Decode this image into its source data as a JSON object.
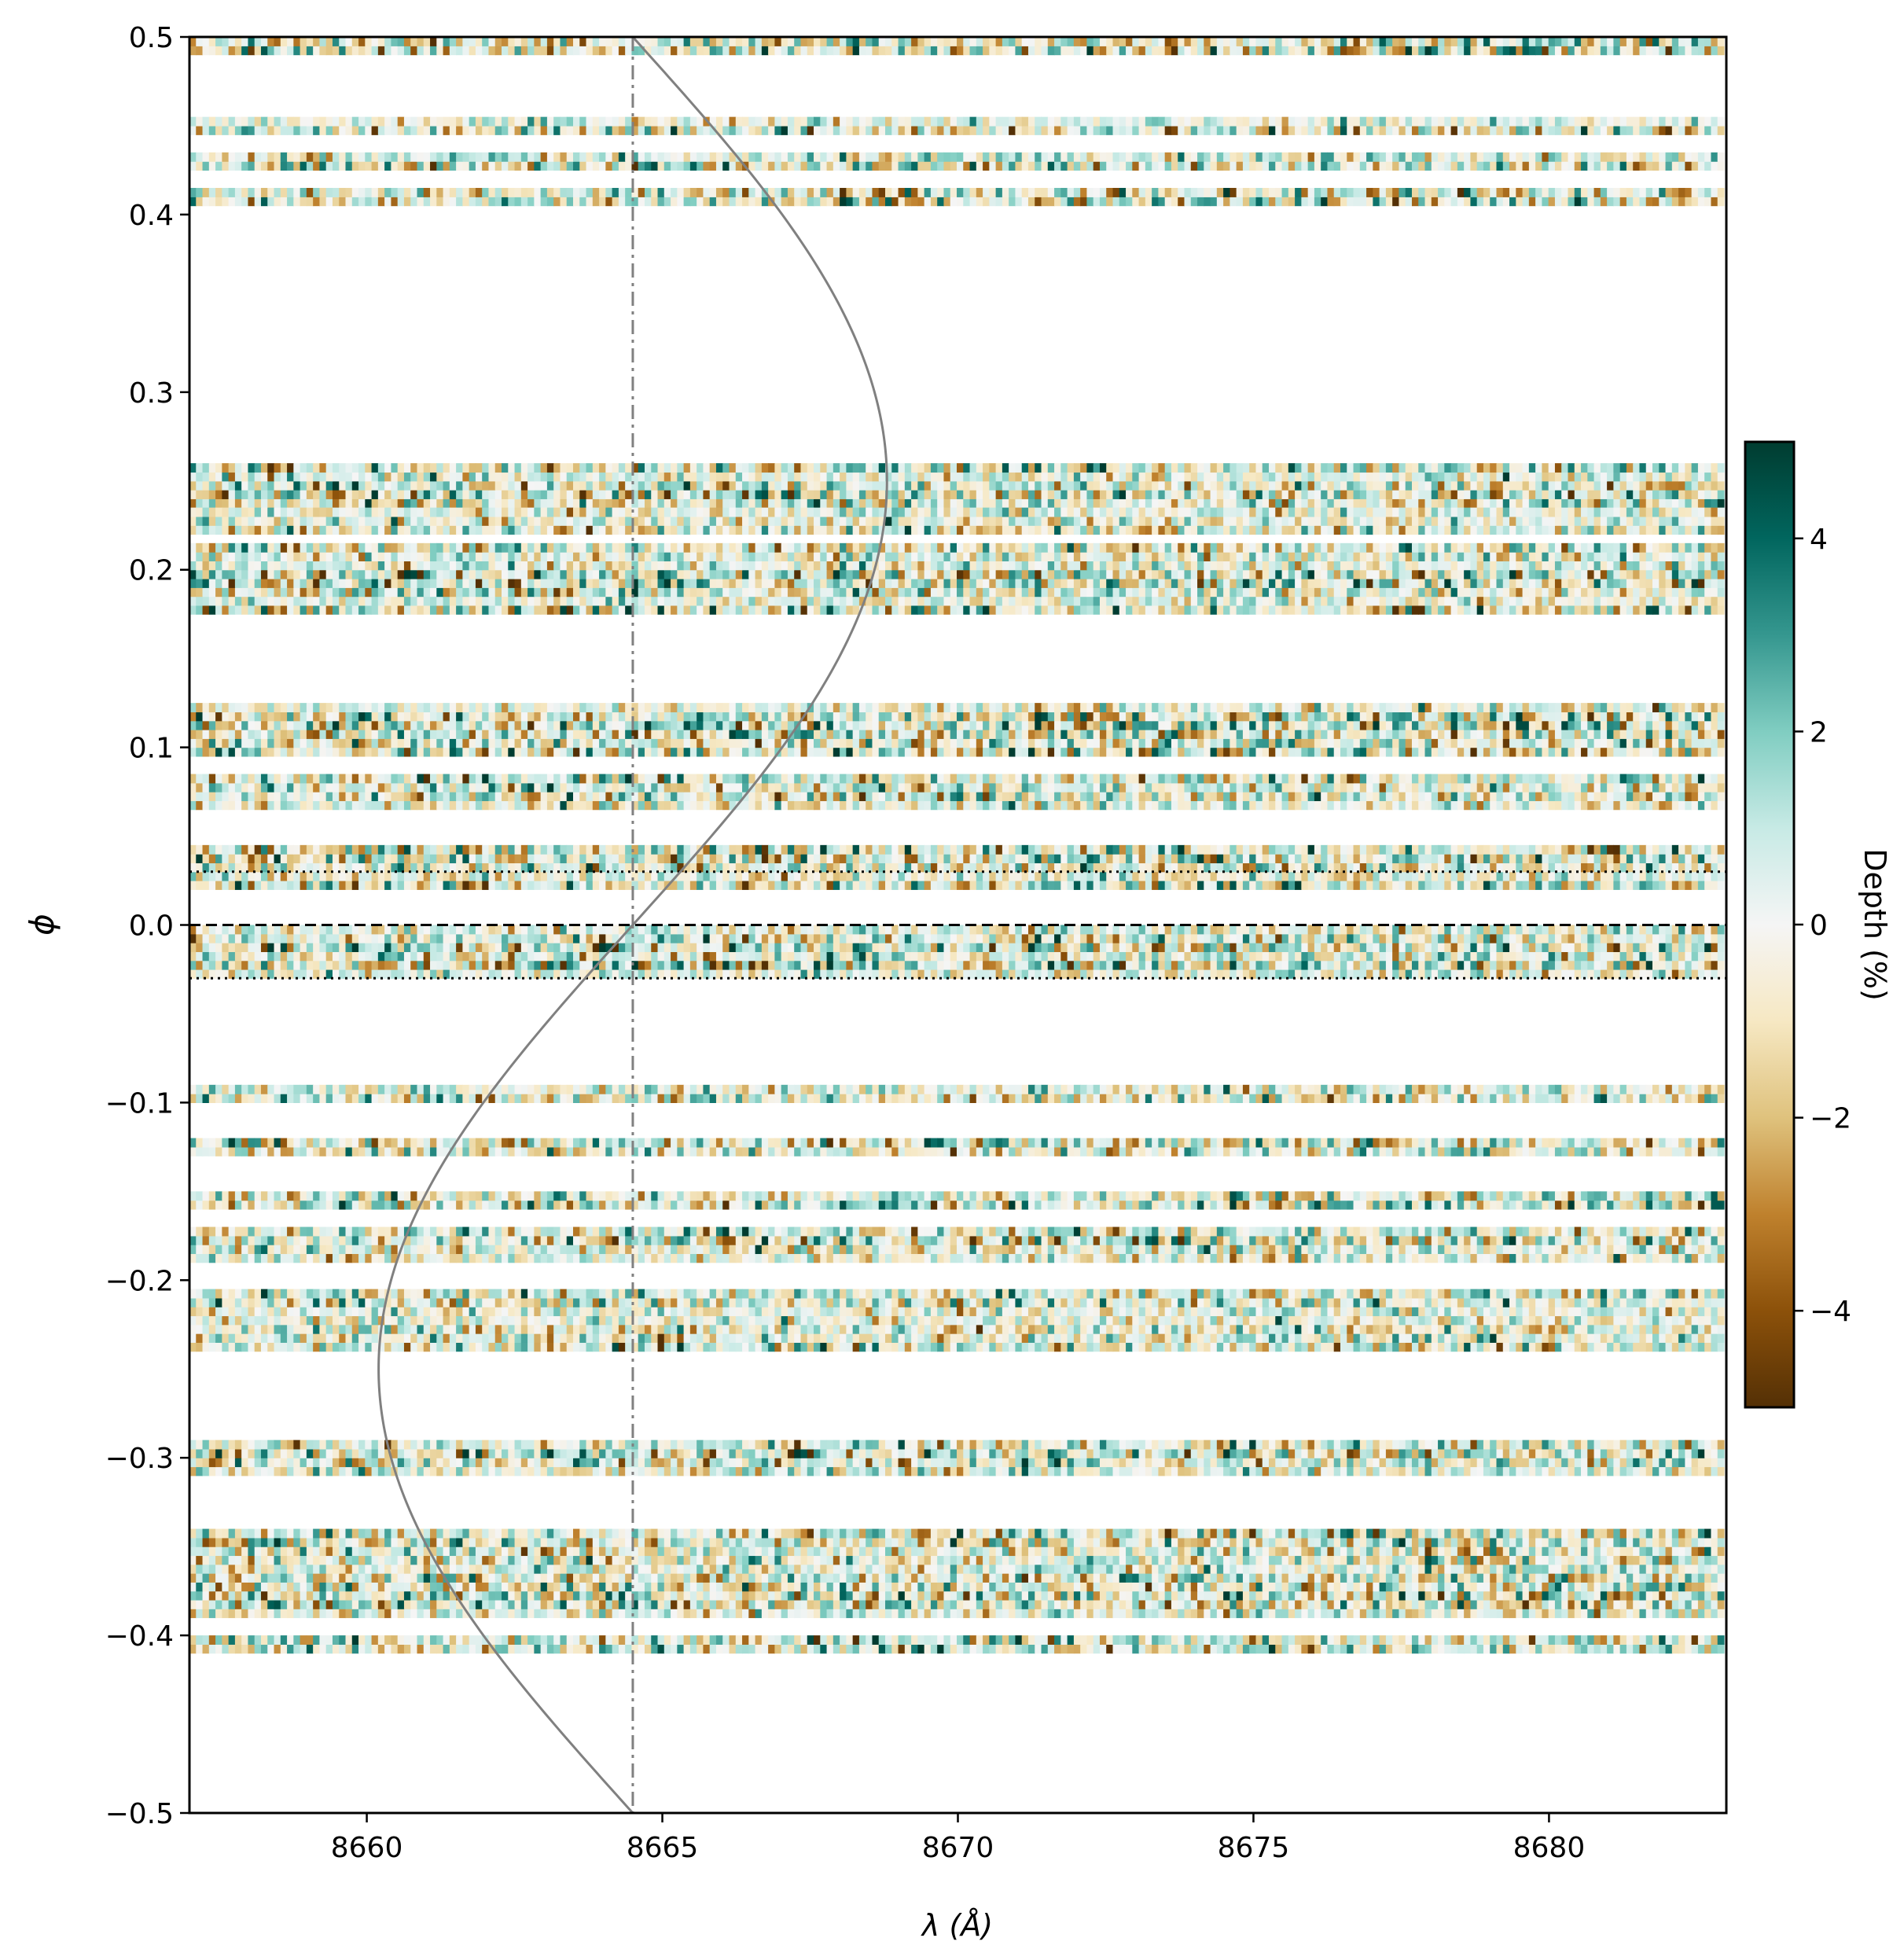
{
  "chart_data": {
    "type": "heatmap",
    "title": "",
    "xlabel": "λ (Å)",
    "ylabel": "ϕ",
    "xlim": [
      8657.0,
      8683.0
    ],
    "ylim": [
      -0.5,
      0.5
    ],
    "x_ticks": [
      8660,
      8665,
      8670,
      8675,
      8680
    ],
    "x_tick_labels": [
      "8660",
      "8665",
      "8670",
      "8675",
      "8680"
    ],
    "y_ticks": [
      -0.5,
      -0.4,
      -0.3,
      -0.2,
      -0.1,
      0.0,
      0.1,
      0.2,
      0.3,
      0.4,
      0.5
    ],
    "y_tick_labels": [
      "−0.5",
      "−0.4",
      "−0.3",
      "−0.2",
      "−0.1",
      "0.0",
      "0.1",
      "0.2",
      "0.3",
      "0.4",
      "0.5"
    ],
    "grid": false,
    "colorbar": {
      "label": "Depth (%)",
      "range": [
        -5,
        5
      ],
      "ticks": [
        -4,
        -2,
        0,
        2,
        4
      ],
      "tick_labels": [
        "−4",
        "−2",
        "0",
        "2",
        "4"
      ],
      "colormap": "BrBG",
      "colors": [
        "#543005",
        "#8c510a",
        "#bf812d",
        "#dfc27d",
        "#f6e8c3",
        "#f5f5f5",
        "#c7eae5",
        "#80cdc1",
        "#35978f",
        "#01665e",
        "#003c30"
      ]
    },
    "wavelength_bin": 0.11,
    "phase_bands": [
      [
        0.49,
        0.5
      ],
      [
        0.445,
        0.455
      ],
      [
        0.425,
        0.435
      ],
      [
        0.405,
        0.415
      ],
      [
        0.235,
        0.26
      ],
      [
        0.22,
        0.235
      ],
      [
        0.175,
        0.215
      ],
      [
        0.095,
        0.125
      ],
      [
        0.065,
        0.085
      ],
      [
        0.02,
        0.045
      ],
      [
        -0.03,
        0.0
      ],
      [
        -0.1,
        -0.09
      ],
      [
        -0.13,
        -0.12
      ],
      [
        -0.16,
        -0.15
      ],
      [
        -0.19,
        -0.17
      ],
      [
        -0.24,
        -0.205
      ],
      [
        -0.31,
        -0.29
      ],
      [
        -0.39,
        -0.34
      ],
      [
        -0.41,
        -0.4
      ]
    ],
    "reference_lines": {
      "rest_wavelength": 8664.5,
      "mid_transit_phase": 0.0,
      "transit_limits": [
        -0.03,
        0.03
      ]
    },
    "planet_trace": {
      "center": 8664.5,
      "amplitude": 4.3
    }
  }
}
